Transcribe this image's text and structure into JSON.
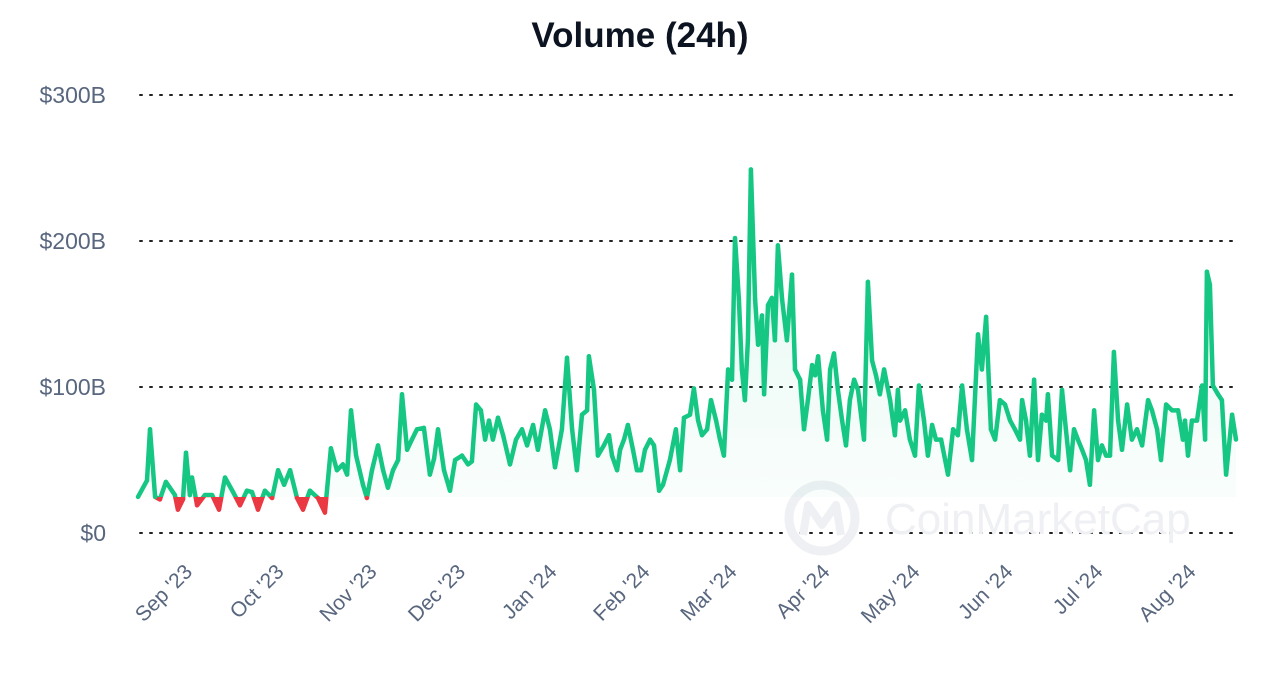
{
  "chart_data": {
    "type": "line",
    "title": "Volume (24h)",
    "xlabel": "",
    "ylabel": "",
    "ylim": [
      0,
      300
    ],
    "y_unit": "billions USD",
    "y_ticks": [
      {
        "value": 0,
        "label": "$0"
      },
      {
        "value": 100,
        "label": "$100B"
      },
      {
        "value": 200,
        "label": "$200B"
      },
      {
        "value": 300,
        "label": "$300B"
      }
    ],
    "x_unit": "days since series start",
    "x_range": [
      0,
      366
    ],
    "x_ticks": [
      {
        "day": 18.5,
        "label": "Sep '23"
      },
      {
        "day": 49,
        "label": "Oct '23"
      },
      {
        "day": 80,
        "label": "Nov '23"
      },
      {
        "day": 109.5,
        "label": "Dec '23"
      },
      {
        "day": 140,
        "label": "Jan '24"
      },
      {
        "day": 171,
        "label": "Feb '24"
      },
      {
        "day": 200,
        "label": "Mar '24"
      },
      {
        "day": 231,
        "label": "Apr '24"
      },
      {
        "day": 261,
        "label": "May '24"
      },
      {
        "day": 292,
        "label": "Jun '24"
      },
      {
        "day": 322,
        "label": "Jul '24"
      },
      {
        "day": 353,
        "label": "Aug '24"
      }
    ],
    "grid": true,
    "baseline_value": 24.7,
    "colors": {
      "above": "#16c784",
      "below": "#ea3943"
    },
    "points": [
      [
        0,
        24.7
      ],
      [
        3,
        36
      ],
      [
        4,
        71
      ],
      [
        5.7,
        24.7
      ],
      [
        7.3,
        23
      ],
      [
        9.3,
        35
      ],
      [
        12.3,
        26
      ],
      [
        13.3,
        16
      ],
      [
        15,
        23
      ],
      [
        16,
        55
      ],
      [
        17.3,
        26
      ],
      [
        18,
        38
      ],
      [
        19.7,
        19
      ],
      [
        22.3,
        26
      ],
      [
        24.7,
        26
      ],
      [
        27,
        16
      ],
      [
        29,
        38
      ],
      [
        31.7,
        28
      ],
      [
        34,
        19
      ],
      [
        36.3,
        29
      ],
      [
        38,
        28
      ],
      [
        40,
        16
      ],
      [
        42.3,
        29
      ],
      [
        44.7,
        24
      ],
      [
        46.7,
        43
      ],
      [
        48.7,
        33
      ],
      [
        50.7,
        43
      ],
      [
        53,
        24
      ],
      [
        55,
        16
      ],
      [
        57.3,
        29
      ],
      [
        60,
        24
      ],
      [
        62.3,
        14
      ],
      [
        64.3,
        58
      ],
      [
        66.3,
        43
      ],
      [
        68.3,
        47
      ],
      [
        69.7,
        40
      ],
      [
        71,
        84
      ],
      [
        72.7,
        53
      ],
      [
        75,
        33
      ],
      [
        76.3,
        24
      ],
      [
        78,
        43
      ],
      [
        80,
        60
      ],
      [
        81.7,
        43
      ],
      [
        83.3,
        31
      ],
      [
        85,
        43
      ],
      [
        86.7,
        50
      ],
      [
        88,
        95
      ],
      [
        89.7,
        57
      ],
      [
        91.3,
        64
      ],
      [
        93,
        71
      ],
      [
        95.3,
        72
      ],
      [
        97.3,
        40
      ],
      [
        98.7,
        51
      ],
      [
        100,
        71
      ],
      [
        102,
        43
      ],
      [
        104,
        29
      ],
      [
        105.7,
        50
      ],
      [
        108,
        53
      ],
      [
        110,
        47
      ],
      [
        111.3,
        49
      ],
      [
        112.7,
        88
      ],
      [
        114.3,
        84
      ],
      [
        115.7,
        64
      ],
      [
        117,
        77
      ],
      [
        118.3,
        64
      ],
      [
        120,
        79
      ],
      [
        121.7,
        67
      ],
      [
        124,
        47
      ],
      [
        126,
        64
      ],
      [
        128,
        71
      ],
      [
        129.7,
        60
      ],
      [
        131.7,
        74
      ],
      [
        133.3,
        57
      ],
      [
        135.7,
        84
      ],
      [
        137.3,
        71
      ],
      [
        139,
        45
      ],
      [
        141.3,
        71
      ],
      [
        143,
        120
      ],
      [
        144.7,
        71
      ],
      [
        146.3,
        43
      ],
      [
        148,
        81
      ],
      [
        149.7,
        84
      ],
      [
        150.3,
        121
      ],
      [
        152,
        98
      ],
      [
        153.3,
        53
      ],
      [
        155.3,
        60
      ],
      [
        157,
        67
      ],
      [
        158,
        53
      ],
      [
        159.7,
        43
      ],
      [
        160.7,
        57
      ],
      [
        162,
        64
      ],
      [
        163.3,
        74
      ],
      [
        165,
        57
      ],
      [
        166.3,
        43
      ],
      [
        167.7,
        43
      ],
      [
        169,
        57
      ],
      [
        170.7,
        64
      ],
      [
        172,
        60
      ],
      [
        173.7,
        29
      ],
      [
        175,
        33
      ],
      [
        177.3,
        50
      ],
      [
        179.3,
        71
      ],
      [
        180.7,
        43
      ],
      [
        182,
        79
      ],
      [
        184,
        81
      ],
      [
        185.3,
        99
      ],
      [
        186.7,
        77
      ],
      [
        188,
        67
      ],
      [
        189.7,
        71
      ],
      [
        191,
        91
      ],
      [
        192.7,
        77
      ],
      [
        194,
        64
      ],
      [
        195.3,
        53
      ],
      [
        196.7,
        112
      ],
      [
        198,
        105
      ],
      [
        199,
        202
      ],
      [
        200.3,
        160
      ],
      [
        201.3,
        112
      ],
      [
        202.3,
        91
      ],
      [
        203.3,
        132
      ],
      [
        204.3,
        249
      ],
      [
        205.7,
        160
      ],
      [
        206.7,
        129
      ],
      [
        208,
        149
      ],
      [
        208.7,
        95
      ],
      [
        210,
        156
      ],
      [
        211.3,
        161
      ],
      [
        212.3,
        132
      ],
      [
        213.3,
        197
      ],
      [
        214.7,
        160
      ],
      [
        216.3,
        132
      ],
      [
        218,
        177
      ],
      [
        219,
        112
      ],
      [
        220.7,
        105
      ],
      [
        222,
        71
      ],
      [
        223.3,
        91
      ],
      [
        224.7,
        115
      ],
      [
        225.7,
        108
      ],
      [
        226.7,
        121
      ],
      [
        228.3,
        84
      ],
      [
        229.7,
        64
      ],
      [
        230.7,
        112
      ],
      [
        232,
        123
      ],
      [
        233.3,
        98
      ],
      [
        234.7,
        77
      ],
      [
        236,
        60
      ],
      [
        237.3,
        91
      ],
      [
        238.7,
        105
      ],
      [
        240,
        98
      ],
      [
        242,
        64
      ],
      [
        243.3,
        172
      ],
      [
        244.7,
        118
      ],
      [
        246,
        108
      ],
      [
        247.3,
        95
      ],
      [
        248.7,
        112
      ],
      [
        250.7,
        91
      ],
      [
        252.3,
        67
      ],
      [
        253.3,
        98
      ],
      [
        254,
        77
      ],
      [
        255.7,
        84
      ],
      [
        257.3,
        64
      ],
      [
        259,
        53
      ],
      [
        260.3,
        101
      ],
      [
        262,
        77
      ],
      [
        263.3,
        53
      ],
      [
        264.7,
        74
      ],
      [
        266,
        64
      ],
      [
        267.7,
        64
      ],
      [
        270,
        40
      ],
      [
        271.7,
        71
      ],
      [
        273.3,
        67
      ],
      [
        274.7,
        101
      ],
      [
        276.3,
        71
      ],
      [
        278,
        50
      ],
      [
        280,
        136
      ],
      [
        281.3,
        112
      ],
      [
        282.7,
        148
      ],
      [
        284.3,
        71
      ],
      [
        285.7,
        64
      ],
      [
        287.3,
        91
      ],
      [
        289,
        88
      ],
      [
        290.7,
        77
      ],
      [
        292.3,
        71
      ],
      [
        294,
        64
      ],
      [
        294.7,
        91
      ],
      [
        296,
        77
      ],
      [
        297.3,
        53
      ],
      [
        298.7,
        105
      ],
      [
        300,
        50
      ],
      [
        301.3,
        81
      ],
      [
        302.7,
        77
      ],
      [
        303.3,
        95
      ],
      [
        304.7,
        53
      ],
      [
        306.7,
        50
      ],
      [
        308,
        98
      ],
      [
        309.3,
        71
      ],
      [
        310.7,
        43
      ],
      [
        312,
        71
      ],
      [
        313.3,
        64
      ],
      [
        314.7,
        57
      ],
      [
        316,
        50
      ],
      [
        317.3,
        33
      ],
      [
        318.7,
        84
      ],
      [
        320,
        50
      ],
      [
        321.3,
        60
      ],
      [
        322.7,
        53
      ],
      [
        324,
        53
      ],
      [
        325.3,
        124
      ],
      [
        326.7,
        77
      ],
      [
        328,
        57
      ],
      [
        329.7,
        88
      ],
      [
        331.3,
        64
      ],
      [
        333,
        71
      ],
      [
        334.7,
        60
      ],
      [
        336.7,
        91
      ],
      [
        338,
        84
      ],
      [
        339.7,
        71
      ],
      [
        341,
        50
      ],
      [
        342.7,
        88
      ],
      [
        344.7,
        84
      ],
      [
        346.7,
        84
      ],
      [
        348.3,
        64
      ],
      [
        349,
        77
      ],
      [
        350,
        53
      ],
      [
        351.3,
        77
      ],
      [
        353,
        77
      ],
      [
        354.7,
        101
      ],
      [
        355.7,
        64
      ],
      [
        356.3,
        179
      ],
      [
        357.3,
        170
      ],
      [
        358.3,
        101
      ],
      [
        360,
        95
      ],
      [
        361.3,
        91
      ],
      [
        362.7,
        40
      ],
      [
        364.7,
        81
      ],
      [
        366,
        64
      ]
    ]
  },
  "watermark": {
    "text": "CoinMarketCap"
  }
}
